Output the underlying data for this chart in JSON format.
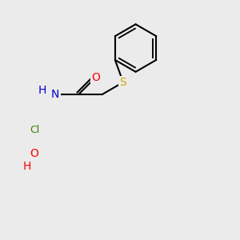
{
  "background_color": "#ebebeb",
  "bond_color": "#000000",
  "line_width": 1.5,
  "atoms": {
    "S": {
      "color": "#ccaa00",
      "fontsize": 10
    },
    "O": {
      "color": "#ff0000",
      "fontsize": 10
    },
    "N": {
      "color": "#0000cd",
      "fontsize": 10
    },
    "Cl": {
      "color": "#3a7d00",
      "fontsize": 9
    },
    "H_blue": {
      "color": "#0000cd",
      "fontsize": 10
    },
    "H_red": {
      "color": "#ff0000",
      "fontsize": 10
    }
  },
  "figsize": [
    3.0,
    3.0
  ],
  "dpi": 100
}
